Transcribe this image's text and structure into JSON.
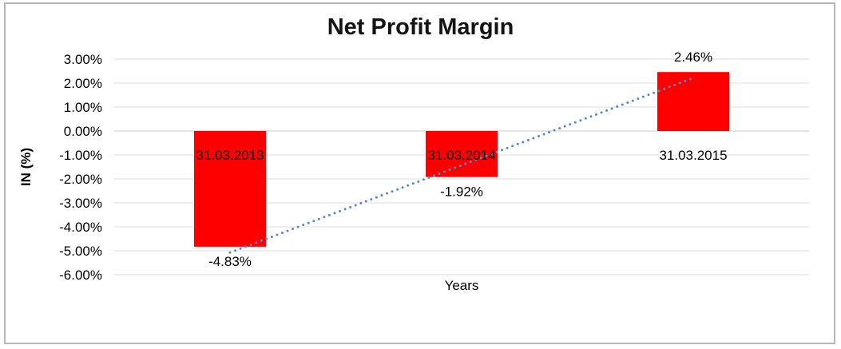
{
  "frame": {
    "border_color": "#B8B8B8",
    "background": "#FFFFFF"
  },
  "chart_data": {
    "type": "bar",
    "title": "Net Profit Margin",
    "xlabel": "Years",
    "ylabel": "IN (%)",
    "categories": [
      "31.03.2013",
      "31.03.2014",
      "31.03.2015"
    ],
    "values": [
      -4.83,
      -1.92,
      2.46
    ],
    "data_labels": [
      "-4.83%",
      "-1.92%",
      "2.46%"
    ],
    "y_tick_labels": [
      "3.00%",
      "2.00%",
      "1.00%",
      "0.00%",
      "-1.00%",
      "-2.00%",
      "-3.00%",
      "-4.00%",
      "-5.00%",
      "-6.00%"
    ],
    "ylim": [
      -6,
      3
    ],
    "y_step": 1,
    "grid": true,
    "legend_position": "none",
    "bar_color": "#FF0000",
    "gridline_color": "#DCDCDC",
    "zero_line_color": "#C9C9C9",
    "trendline": {
      "kind": "linear",
      "style": "dotted",
      "color": "#5589C9"
    }
  }
}
